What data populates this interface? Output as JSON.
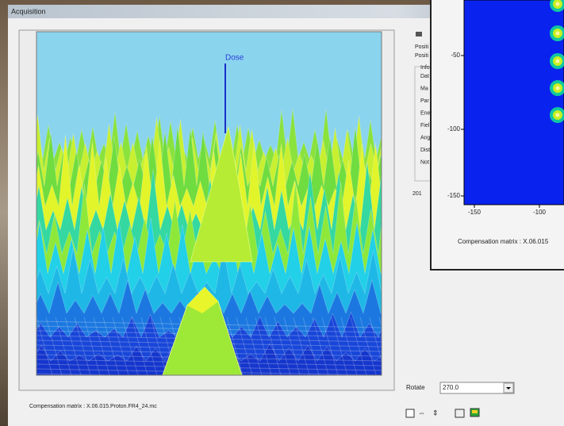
{
  "window": {
    "title": "Acquisition"
  },
  "plot": {
    "axis_label": "Dose",
    "caption": "Compensation matrix : X.06.015.Proton.FR4_24.mc"
  },
  "info_panel": {
    "lines": [
      "Positi",
      "Positi"
    ],
    "group_title": "Info",
    "fields": [
      "Dat",
      "Ma",
      "Par",
      "Ene",
      "Fiel",
      "Ang",
      "Dist",
      "Not"
    ],
    "date": "201"
  },
  "controls": {
    "rotate_label": "Rotate",
    "rotate_value": "270.0"
  },
  "overlay": {
    "y_ticks": [
      "-50",
      "-100",
      "-150"
    ],
    "x_ticks": [
      "-150",
      "-100"
    ],
    "caption": "Compensation matrix : X.06.015"
  }
}
